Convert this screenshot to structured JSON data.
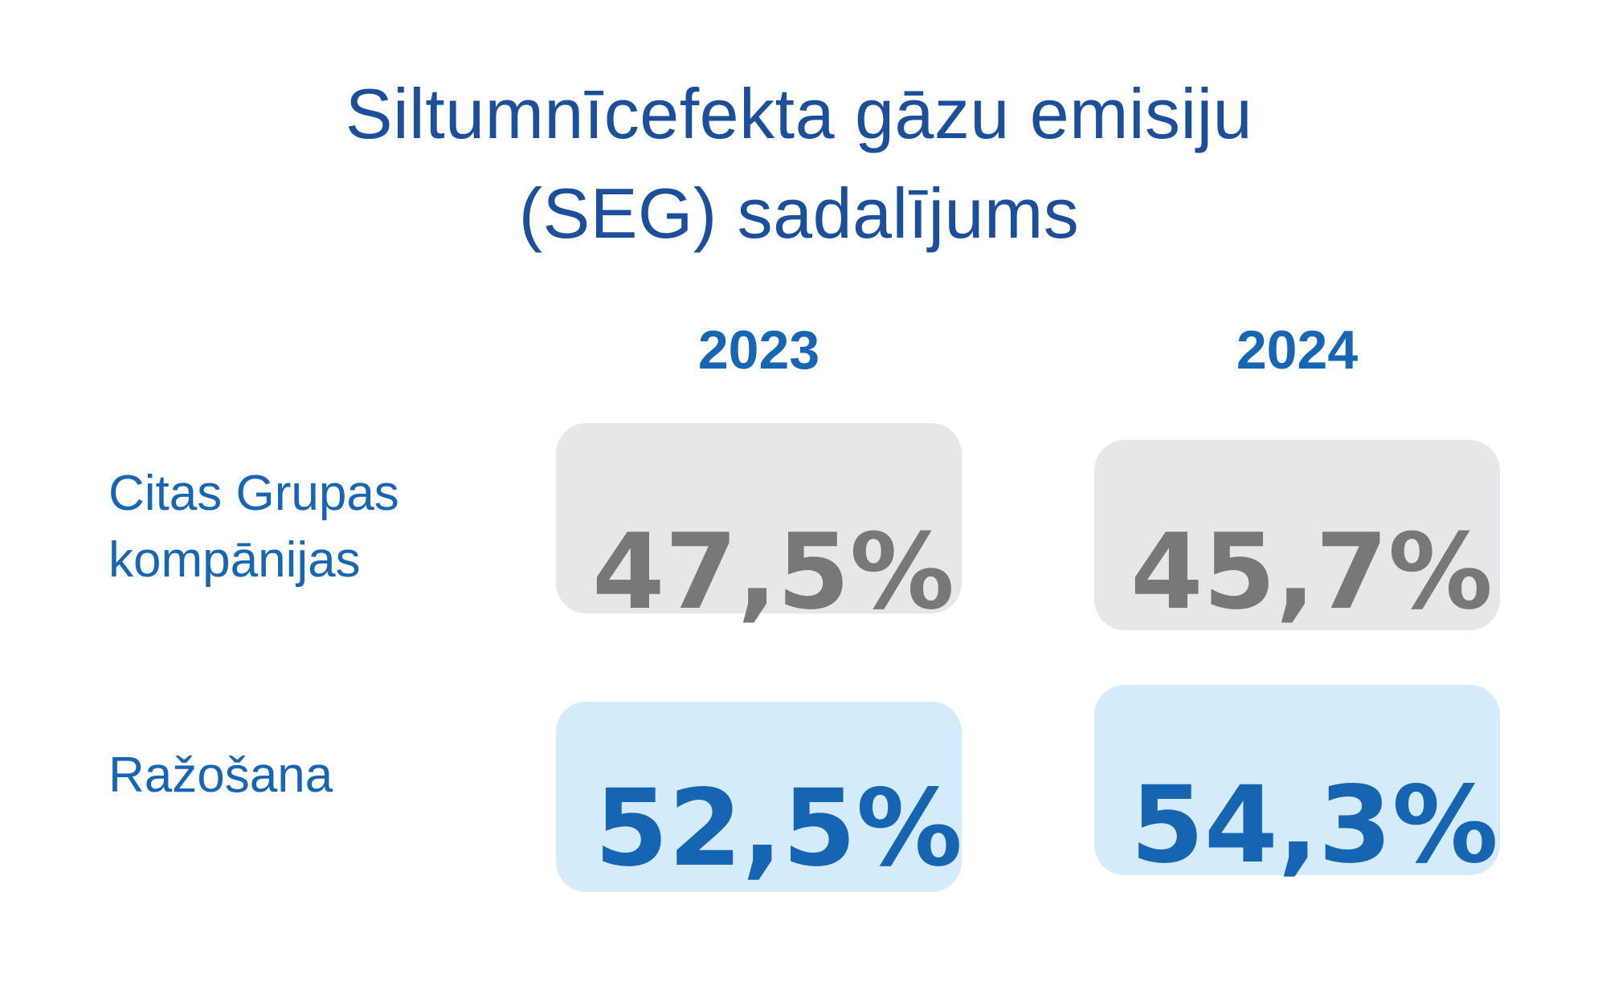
{
  "chart_data": {
    "type": "table",
    "title": "Siltumnīcefekta gāzu emisiju (SEG) sadalījums",
    "title_lines": [
      "Siltumnīcefekta gāzu emisiju",
      "(SEG) sadalījums"
    ],
    "columns": [
      "2023",
      "2024"
    ],
    "rows": [
      {
        "label": "Citas Grupas kompānijas",
        "label_lines": [
          "Citas Grupas",
          "kompānijas"
        ],
        "values": [
          47.5,
          45.7
        ],
        "display": [
          "47,5%",
          "45,7%"
        ]
      },
      {
        "label": "Ražošana",
        "label_lines": [
          "Ražošana"
        ],
        "values": [
          52.5,
          54.3
        ],
        "display": [
          "52,5%",
          "54,3%"
        ]
      }
    ],
    "unit": "%"
  },
  "colors": {
    "title": "#1b4f9c",
    "accent_blue": "#1766b3",
    "value_grey": "#787878",
    "value_blue": "#1565b2",
    "card_grey": "#e6e7e8",
    "card_blue": "#d3ebfb"
  }
}
